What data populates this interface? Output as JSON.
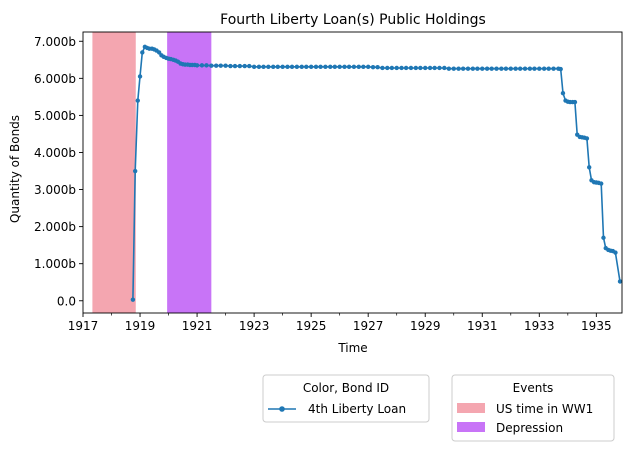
{
  "chart_data": {
    "type": "line",
    "title": "Fourth Liberty Loan(s) Public Holdings",
    "xlabel": "Time",
    "ylabel": "Quantity of Bonds",
    "xlim": [
      1917,
      1935.9
    ],
    "ylim": [
      -0.33,
      7.25
    ],
    "x_ticks": [
      1917,
      1919,
      1921,
      1923,
      1925,
      1927,
      1929,
      1931,
      1933,
      1935
    ],
    "x_tick_labels": [
      "1917",
      "1919",
      "1921",
      "1923",
      "1925",
      "1927",
      "1929",
      "1931",
      "1933",
      "1935"
    ],
    "x_minor_ticks": [
      1918,
      1920,
      1922,
      1924,
      1926,
      1928,
      1930,
      1932,
      1934
    ],
    "y_ticks": [
      0,
      1,
      2,
      3,
      4,
      5,
      6,
      7
    ],
    "y_tick_labels": [
      "0.0",
      "1.000b",
      "2.000b",
      "3.000b",
      "4.000b",
      "5.000b",
      "6.000b",
      "7.000b"
    ],
    "bands": [
      {
        "name": "US time in WW1",
        "start": 1917.33,
        "end": 1918.85,
        "color": "#f4a6b0"
      },
      {
        "name": "Depression",
        "start": 1919.95,
        "end": 1921.5,
        "color": "#c874f7"
      }
    ],
    "series": [
      {
        "name": "4th Liberty Loan",
        "color": "#1f77b4",
        "points": [
          [
            1918.75,
            0.03
          ],
          [
            1918.83,
            3.5
          ],
          [
            1918.92,
            5.4
          ],
          [
            1919.0,
            6.05
          ],
          [
            1919.08,
            6.7
          ],
          [
            1919.17,
            6.85
          ],
          [
            1919.25,
            6.82
          ],
          [
            1919.33,
            6.8
          ],
          [
            1919.42,
            6.8
          ],
          [
            1919.5,
            6.78
          ],
          [
            1919.58,
            6.75
          ],
          [
            1919.67,
            6.7
          ],
          [
            1919.75,
            6.62
          ],
          [
            1919.83,
            6.58
          ],
          [
            1919.92,
            6.55
          ],
          [
            1920.0,
            6.53
          ],
          [
            1920.08,
            6.52
          ],
          [
            1920.17,
            6.5
          ],
          [
            1920.25,
            6.48
          ],
          [
            1920.33,
            6.45
          ],
          [
            1920.42,
            6.4
          ],
          [
            1920.5,
            6.38
          ],
          [
            1920.58,
            6.37
          ],
          [
            1920.67,
            6.37
          ],
          [
            1920.75,
            6.36
          ],
          [
            1920.83,
            6.36
          ],
          [
            1920.92,
            6.36
          ],
          [
            1921.0,
            6.35
          ],
          [
            1921.17,
            6.35
          ],
          [
            1921.33,
            6.35
          ],
          [
            1921.5,
            6.34
          ],
          [
            1921.67,
            6.34
          ],
          [
            1921.83,
            6.34
          ],
          [
            1922.0,
            6.34
          ],
          [
            1922.17,
            6.33
          ],
          [
            1922.33,
            6.33
          ],
          [
            1922.5,
            6.33
          ],
          [
            1922.67,
            6.33
          ],
          [
            1922.83,
            6.33
          ],
          [
            1923.0,
            6.31
          ],
          [
            1923.17,
            6.31
          ],
          [
            1923.33,
            6.31
          ],
          [
            1923.5,
            6.31
          ],
          [
            1923.67,
            6.31
          ],
          [
            1923.83,
            6.31
          ],
          [
            1924.0,
            6.31
          ],
          [
            1924.17,
            6.31
          ],
          [
            1924.33,
            6.31
          ],
          [
            1924.5,
            6.31
          ],
          [
            1924.67,
            6.31
          ],
          [
            1924.83,
            6.31
          ],
          [
            1925.0,
            6.31
          ],
          [
            1925.17,
            6.31
          ],
          [
            1925.33,
            6.31
          ],
          [
            1925.5,
            6.31
          ],
          [
            1925.67,
            6.31
          ],
          [
            1925.83,
            6.31
          ],
          [
            1926.0,
            6.31
          ],
          [
            1926.17,
            6.31
          ],
          [
            1926.33,
            6.31
          ],
          [
            1926.5,
            6.31
          ],
          [
            1926.67,
            6.31
          ],
          [
            1926.83,
            6.31
          ],
          [
            1927.0,
            6.31
          ],
          [
            1927.17,
            6.3
          ],
          [
            1927.33,
            6.3
          ],
          [
            1927.5,
            6.28
          ],
          [
            1927.67,
            6.28
          ],
          [
            1927.83,
            6.28
          ],
          [
            1928.0,
            6.28
          ],
          [
            1928.17,
            6.28
          ],
          [
            1928.33,
            6.28
          ],
          [
            1928.5,
            6.28
          ],
          [
            1928.67,
            6.28
          ],
          [
            1928.83,
            6.28
          ],
          [
            1929.0,
            6.28
          ],
          [
            1929.17,
            6.28
          ],
          [
            1929.33,
            6.28
          ],
          [
            1929.5,
            6.28
          ],
          [
            1929.67,
            6.28
          ],
          [
            1929.83,
            6.26
          ],
          [
            1930.0,
            6.26
          ],
          [
            1930.17,
            6.26
          ],
          [
            1930.33,
            6.26
          ],
          [
            1930.5,
            6.26
          ],
          [
            1930.67,
            6.26
          ],
          [
            1930.83,
            6.26
          ],
          [
            1931.0,
            6.26
          ],
          [
            1931.17,
            6.26
          ],
          [
            1931.33,
            6.26
          ],
          [
            1931.5,
            6.26
          ],
          [
            1931.67,
            6.26
          ],
          [
            1931.83,
            6.26
          ],
          [
            1932.0,
            6.26
          ],
          [
            1932.17,
            6.26
          ],
          [
            1932.33,
            6.26
          ],
          [
            1932.5,
            6.26
          ],
          [
            1932.67,
            6.26
          ],
          [
            1932.83,
            6.26
          ],
          [
            1933.0,
            6.26
          ],
          [
            1933.17,
            6.26
          ],
          [
            1933.33,
            6.26
          ],
          [
            1933.5,
            6.26
          ],
          [
            1933.67,
            6.26
          ],
          [
            1933.75,
            6.25
          ],
          [
            1933.83,
            5.6
          ],
          [
            1933.92,
            5.4
          ],
          [
            1934.0,
            5.37
          ],
          [
            1934.08,
            5.36
          ],
          [
            1934.17,
            5.36
          ],
          [
            1934.25,
            5.36
          ],
          [
            1934.33,
            4.48
          ],
          [
            1934.42,
            4.42
          ],
          [
            1934.5,
            4.41
          ],
          [
            1934.58,
            4.4
          ],
          [
            1934.67,
            4.38
          ],
          [
            1934.75,
            3.6
          ],
          [
            1934.83,
            3.25
          ],
          [
            1934.92,
            3.2
          ],
          [
            1935.0,
            3.19
          ],
          [
            1935.08,
            3.18
          ],
          [
            1935.17,
            3.16
          ],
          [
            1935.25,
            1.7
          ],
          [
            1935.33,
            1.42
          ],
          [
            1935.42,
            1.37
          ],
          [
            1935.5,
            1.35
          ],
          [
            1935.58,
            1.34
          ],
          [
            1935.67,
            1.3
          ],
          [
            1935.83,
            0.52
          ]
        ]
      }
    ],
    "legends": [
      {
        "title": "Color, Bond ID",
        "entries": [
          "4th Liberty Loan"
        ]
      },
      {
        "title": "Events",
        "entries": [
          "US time in WW1",
          "Depression"
        ]
      }
    ]
  }
}
